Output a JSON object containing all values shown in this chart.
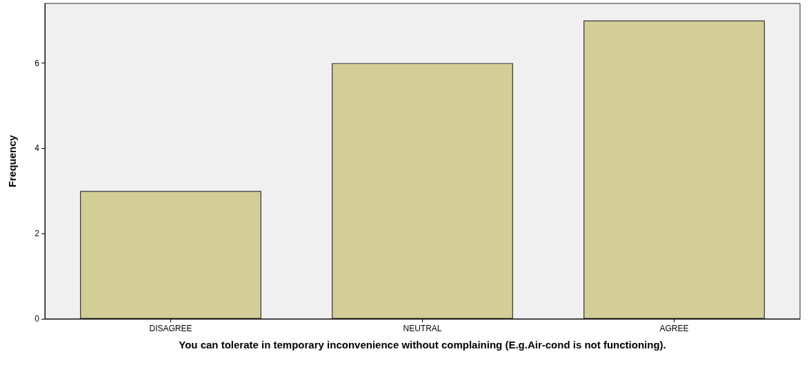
{
  "chart_data": {
    "type": "bar",
    "categories": [
      "DISAGREE",
      "NEUTRAL",
      "AGREE"
    ],
    "values": [
      3,
      6,
      7
    ],
    "color": "#d3ce97",
    "ylim": [
      0,
      7.4
    ],
    "yticks": [
      0,
      2,
      4,
      6
    ],
    "xlabel": "You can tolerate in temporary inconvenience without complaining (E.g.Air-cond is not functioning).",
    "ylabel": "Frequency",
    "grid": false
  }
}
